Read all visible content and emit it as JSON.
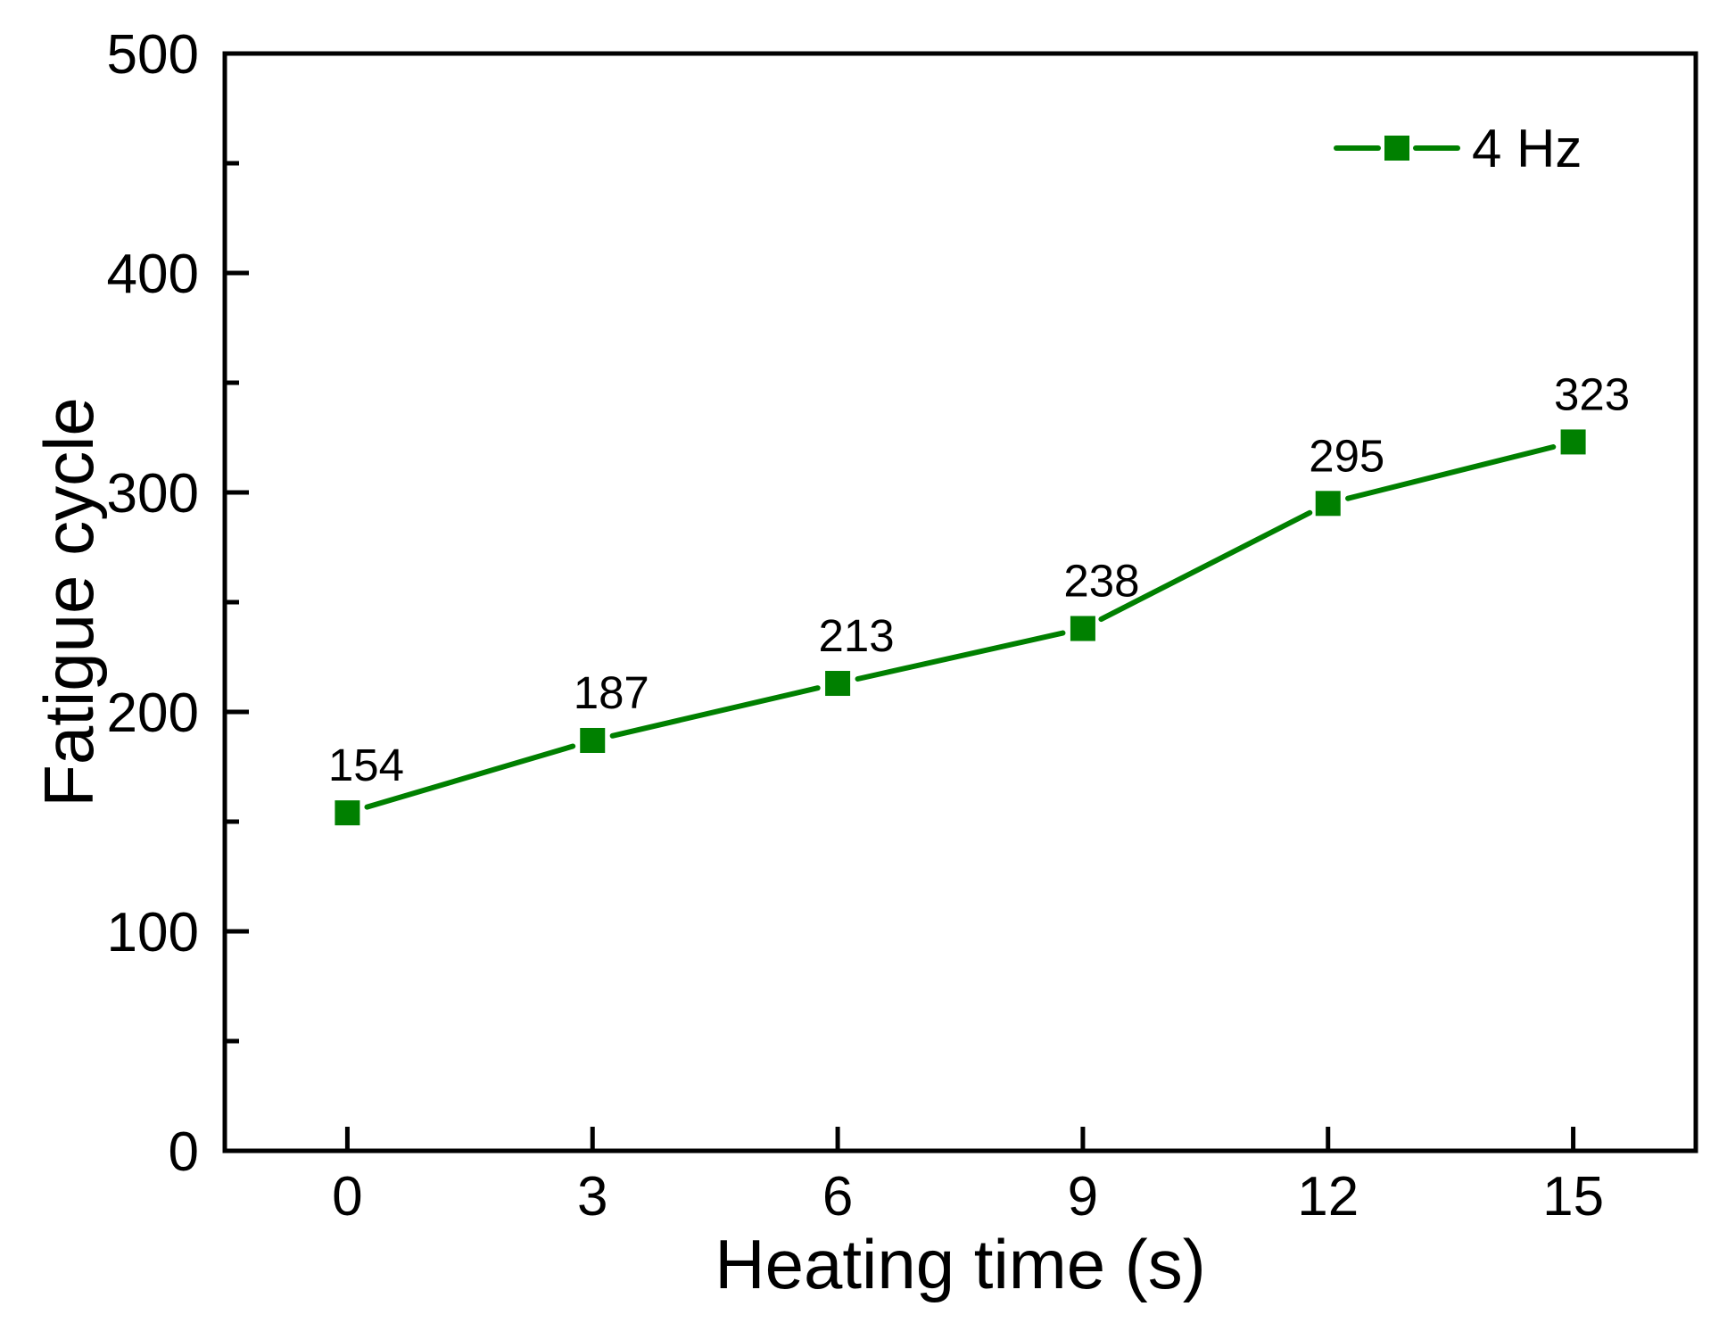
{
  "chart_data": {
    "type": "line",
    "title": "",
    "xlabel": "Heating time (s)",
    "ylabel": "Fatigue cycle",
    "xlim": [
      -1.5,
      16.5
    ],
    "ylim": [
      0,
      500
    ],
    "xticks": [
      0,
      3,
      6,
      9,
      12,
      15
    ],
    "yticks_major": [
      0,
      100,
      200,
      300,
      400,
      500
    ],
    "yticks_minor": [
      50,
      150,
      250,
      350,
      450
    ],
    "grid": false,
    "frame": "box",
    "axis_color": "#000000",
    "text_color": "#000000",
    "background": "#ffffff",
    "legend": {
      "position": "top-right",
      "entries": [
        {
          "label": "4 Hz",
          "color": "#008000",
          "marker": "square"
        }
      ]
    },
    "series": [
      {
        "name": "4 Hz",
        "color": "#008000",
        "marker": "square",
        "x": [
          0,
          3,
          6,
          9,
          12,
          15
        ],
        "y": [
          154,
          187,
          213,
          238,
          295,
          323
        ],
        "point_labels": [
          "154",
          "187",
          "213",
          "238",
          "295",
          "323"
        ]
      }
    ]
  }
}
